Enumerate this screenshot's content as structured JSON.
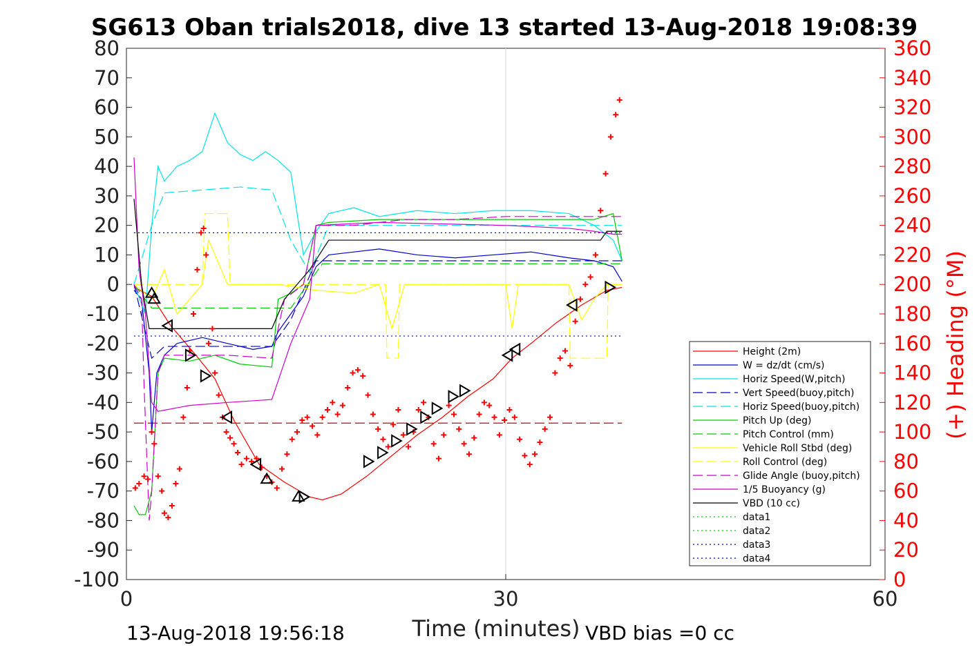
{
  "chart_data": {
    "type": "line",
    "title": "SG613 Oban trials2018, dive 13 started 13-Aug-2018 19:08:39",
    "xlabel": "Time (minutes)",
    "ylabel_right": "(+) Heading (°M)",
    "xlim": [
      0,
      60
    ],
    "ylim": [
      -100,
      80
    ],
    "ylim_right": [
      0,
      360
    ],
    "x_ticks": [
      0,
      30,
      60
    ],
    "y_ticks": [
      80,
      70,
      60,
      50,
      40,
      30,
      20,
      10,
      0,
      -10,
      -20,
      -30,
      -40,
      -50,
      -60,
      -70,
      -80,
      -90,
      -100
    ],
    "y_ticks_right": [
      360,
      340,
      320,
      300,
      280,
      260,
      240,
      220,
      200,
      180,
      160,
      140,
      120,
      100,
      80,
      60,
      40,
      20,
      0
    ],
    "grid": "x=30 only",
    "legend_position": "lower-right",
    "footer_left": "13-Aug-2018 19:56:18",
    "footer_right": "VBD bias =0 cc",
    "series": [
      {
        "name": "Height (2m)",
        "color": "#ff0000",
        "style": "solid",
        "x": [
          0.6,
          2.0,
          3.5,
          5.5,
          7.0,
          8.5,
          10.5,
          12.5,
          14.5,
          15.5,
          17.0,
          19.0,
          21.0,
          23.0,
          25.0,
          27.0,
          29.0,
          30.5,
          32.0,
          34.0,
          36.0,
          38.0,
          39.2
        ],
        "y": [
          -1,
          -4,
          -14,
          -24,
          -32,
          -46,
          -61,
          -67,
          -72,
          -73,
          -71,
          -65,
          -58,
          -51,
          -45,
          -38,
          -32,
          -25,
          -20,
          -13,
          -7,
          -2,
          -1
        ]
      },
      {
        "name": "W = dz/dt (cm/s)",
        "color": "#0000cc",
        "style": "solid",
        "x": [
          0.6,
          1.2,
          1.8,
          2.0,
          2.4,
          3.0,
          4.0,
          6.0,
          8.0,
          10.0,
          11.5,
          12.0,
          13.0,
          14.0,
          15.0,
          16.0,
          18.0,
          20.0,
          23.0,
          26.0,
          29.0,
          32.0,
          35.0,
          37.0,
          38.5,
          39.2
        ],
        "y": [
          -2,
          -5,
          -30,
          -50,
          -30,
          -24,
          -20,
          -18,
          -20,
          -22,
          -21,
          -16,
          -10,
          -4,
          6,
          10,
          11,
          12,
          10,
          9,
          10,
          11,
          9,
          8,
          6,
          1
        ]
      },
      {
        "name": "Horiz Speed(W,pitch)",
        "color": "#00e5e5",
        "style": "solid",
        "x": [
          0.6,
          1.5,
          2.0,
          2.5,
          3.0,
          4.0,
          5.0,
          6.0,
          7.0,
          8.0,
          9.0,
          10.0,
          11.0,
          12.0,
          13.0,
          14.0,
          15.0,
          16.0,
          18.0,
          20.0,
          23.0,
          26.0,
          29.0,
          32.0,
          35.0,
          37.0,
          38.5,
          39.2
        ],
        "y": [
          0,
          -10,
          20,
          40,
          35,
          40,
          42,
          45,
          58,
          48,
          44,
          42,
          45,
          42,
          38,
          10,
          18,
          24,
          26,
          23,
          25,
          24,
          25,
          25,
          24,
          20,
          15,
          8
        ]
      },
      {
        "name": "Vert Speed(buoy,pitch)",
        "color": "#0000cc",
        "style": "dashed",
        "x": [
          0.6,
          2.0,
          3.0,
          11.5,
          13.0,
          15.0,
          39.2
        ],
        "y": [
          0,
          -25,
          -21,
          -21,
          -12,
          8,
          8
        ]
      },
      {
        "name": "Horiz Speed(buoy,pitch)",
        "color": "#00e5e5",
        "style": "dashed",
        "x": [
          0.6,
          2.0,
          3.0,
          6.0,
          9.0,
          11.5,
          13.0,
          14.5,
          16.0,
          25.0,
          35.0,
          39.2
        ],
        "y": [
          0,
          20,
          31,
          32,
          33,
          32,
          15,
          4,
          20,
          20,
          20,
          20
        ]
      },
      {
        "name": "Pitch Up (deg)",
        "color": "#00cc00",
        "style": "solid",
        "x": [
          0.6,
          1.0,
          1.5,
          2.0,
          2.5,
          3.0,
          5.0,
          7.0,
          9.0,
          11.5,
          12.0,
          13.0,
          14.0,
          15.0,
          16.0,
          20.0,
          25.0,
          30.0,
          35.0,
          37.0,
          38.5,
          39.2
        ],
        "y": [
          -75,
          -78,
          -78,
          -70,
          -30,
          -25,
          -26,
          -24,
          -27,
          -28,
          -5,
          -3,
          0,
          20,
          21,
          22,
          22,
          22,
          22,
          22,
          24,
          8
        ]
      },
      {
        "name": "Pitch Control (mm)",
        "color": "#00cc00",
        "style": "dashed",
        "x": [
          0.6,
          2.0,
          11.5,
          13.0,
          15.5,
          39.2
        ],
        "y": [
          0,
          -8,
          -8,
          -8,
          7,
          7
        ]
      },
      {
        "name": "Vehicle Roll Stbd (deg)",
        "color": "#ffff00",
        "style": "solid",
        "x": [
          0.6,
          2.0,
          3.0,
          4.0,
          5.0,
          6.0,
          6.5,
          7.0,
          8.0,
          10.0,
          12.0,
          15.0,
          18.0,
          20.0,
          21.0,
          22.0,
          25.0,
          28.0,
          30.0,
          30.5,
          31.0,
          33.0,
          35.0,
          36.0,
          37.0,
          38.0,
          39.2
        ],
        "y": [
          0,
          -5,
          5,
          -10,
          -5,
          0,
          15,
          10,
          0,
          0,
          0,
          -2,
          -3,
          0,
          -15,
          0,
          0,
          0,
          0,
          -15,
          0,
          0,
          0,
          -12,
          -5,
          0,
          0
        ]
      },
      {
        "name": "Roll Control (deg)",
        "color": "#ffff00",
        "style": "dashed",
        "x": [
          0.6,
          6.0,
          6.2,
          8.0,
          8.2,
          20.5,
          20.6,
          21.5,
          21.6,
          35.0,
          35.1,
          38.0,
          38.1,
          39.2
        ],
        "y": [
          0,
          0,
          24,
          24,
          0,
          0,
          -25,
          -25,
          0,
          0,
          -25,
          -25,
          0,
          0
        ]
      },
      {
        "name": "Glide Angle (buoy,pitch)",
        "color": "#cc00cc",
        "style": "dashed",
        "x": [
          0.6,
          1.2,
          1.4,
          1.8,
          2.0,
          2.5,
          3.0,
          5.0,
          8.0,
          11.5,
          12.5,
          14.0,
          15.0,
          18.0,
          22.0,
          26.0,
          30.0,
          34.0,
          37.0,
          39.2
        ],
        "y": [
          0,
          -5,
          -35,
          -80,
          -70,
          -30,
          -24,
          -24,
          -24,
          -25,
          -5,
          0,
          20,
          20,
          22,
          22,
          23,
          23,
          23,
          23
        ]
      },
      {
        "name": "1/5 Buoyancy (g)",
        "color": "#cc00cc",
        "style": "solid",
        "x": [
          0.6,
          1.0,
          1.5,
          2.0,
          2.5,
          5.0,
          8.0,
          11.5,
          13.0,
          14.5,
          15.0,
          20.0,
          30.0,
          35.0,
          37.0,
          38.5,
          39.2
        ],
        "y": [
          43,
          5,
          -10,
          -40,
          -43,
          -41,
          -40,
          -39,
          -20,
          -5,
          20,
          21,
          20,
          19,
          18,
          17,
          17
        ]
      },
      {
        "name": "VBD (10 cc)",
        "color": "#000000",
        "style": "solid",
        "x": [
          0.6,
          1.2,
          1.8,
          11.5,
          12.5,
          13.5,
          14.5,
          16.0,
          37.5,
          38.0,
          39.2
        ],
        "y": [
          29,
          0,
          -15,
          -15,
          -5,
          0,
          5,
          15,
          15,
          18,
          18
        ]
      },
      {
        "name": "data1",
        "color": "#00cc00",
        "style": "dotted",
        "x": [],
        "y": []
      },
      {
        "name": "data2",
        "color": "#00cc00",
        "style": "dotted",
        "x": [],
        "y": []
      },
      {
        "name": "data3",
        "color": "#0000cc",
        "style": "dotted",
        "x": [
          0.6,
          39.2
        ],
        "y": [
          17.5,
          17.5
        ]
      },
      {
        "name": "data4",
        "color": "#0000cc",
        "style": "dotted",
        "x": [
          0.6,
          39.2
        ],
        "y": [
          -17.5,
          -17.5
        ]
      }
    ],
    "reference_line": {
      "color": "#cc0000",
      "style": "dashed",
      "x": [
        0.6,
        39.2
      ],
      "y": [
        -47,
        -47
      ]
    },
    "heading_series": {
      "color": "#ff0000",
      "marker": "plus",
      "axis": "right",
      "x": [
        0.7,
        1.0,
        1.4,
        1.7,
        2.0,
        2.2,
        2.5,
        2.8,
        3.0,
        3.3,
        3.6,
        3.9,
        4.2,
        4.5,
        4.8,
        5.0,
        5.3,
        5.6,
        5.9,
        6.1,
        6.3,
        6.5,
        6.8,
        7.0,
        7.3,
        7.6,
        7.9,
        8.2,
        8.5,
        8.8,
        9.1,
        9.5,
        9.9,
        10.3,
        10.7,
        11.1,
        11.5,
        11.9,
        12.3,
        12.7,
        13.1,
        13.5,
        13.9,
        14.3,
        14.7,
        15.1,
        15.5,
        15.9,
        16.3,
        16.7,
        17.1,
        17.5,
        17.9,
        18.3,
        18.7,
        19.1,
        19.5,
        19.9,
        20.3,
        20.7,
        21.1,
        21.5,
        21.9,
        22.3,
        22.7,
        23.1,
        23.5,
        23.9,
        24.3,
        24.7,
        25.1,
        25.5,
        25.9,
        26.3,
        26.7,
        27.1,
        27.5,
        27.9,
        28.3,
        28.7,
        29.1,
        29.5,
        29.9,
        30.3,
        30.7,
        31.1,
        31.5,
        31.9,
        32.3,
        32.7,
        33.1,
        33.5,
        33.9,
        34.3,
        34.7,
        35.1,
        35.5,
        35.9,
        36.3,
        36.7,
        37.1,
        37.5,
        37.9,
        38.3,
        38.7,
        39.0
      ],
      "y": [
        62,
        65,
        70,
        68,
        100,
        92,
        70,
        60,
        45,
        42,
        50,
        65,
        75,
        110,
        130,
        155,
        180,
        210,
        235,
        238,
        220,
        160,
        170,
        140,
        125,
        110,
        100,
        96,
        92,
        86,
        78,
        82,
        80,
        82,
        76,
        70,
        66,
        62,
        75,
        85,
        95,
        100,
        108,
        110,
        104,
        98,
        110,
        115,
        120,
        112,
        118,
        130,
        140,
        142,
        138,
        125,
        112,
        102,
        95,
        90,
        105,
        115,
        98,
        90,
        100,
        115,
        120,
        110,
        92,
        82,
        98,
        118,
        112,
        102,
        92,
        85,
        96,
        112,
        120,
        118,
        110,
        98,
        108,
        115,
        110,
        95,
        84,
        78,
        85,
        93,
        102,
        110,
        140,
        150,
        155,
        145,
        175,
        190,
        200,
        205,
        220,
        250,
        275,
        300,
        315,
        325
      ]
    },
    "triangle_markers": {
      "color": "#000000",
      "points": [
        {
          "x": 2.0,
          "y": -3,
          "dir": "up"
        },
        {
          "x": 2.2,
          "y": -5,
          "dir": "up"
        },
        {
          "x": 3.3,
          "y": -14,
          "dir": "left"
        },
        {
          "x": 5.0,
          "y": -24,
          "dir": "right"
        },
        {
          "x": 6.2,
          "y": -31,
          "dir": "right"
        },
        {
          "x": 8.0,
          "y": -45,
          "dir": "left"
        },
        {
          "x": 10.3,
          "y": -61,
          "dir": "left"
        },
        {
          "x": 11.1,
          "y": -66,
          "dir": "up"
        },
        {
          "x": 13.6,
          "y": -72,
          "dir": "up"
        },
        {
          "x": 14.0,
          "y": -72,
          "dir": "right"
        },
        {
          "x": 19.1,
          "y": -60,
          "dir": "right"
        },
        {
          "x": 20.2,
          "y": -57,
          "dir": "right"
        },
        {
          "x": 21.3,
          "y": -53,
          "dir": "right"
        },
        {
          "x": 22.5,
          "y": -49,
          "dir": "right"
        },
        {
          "x": 23.6,
          "y": -45,
          "dir": "right"
        },
        {
          "x": 24.5,
          "y": -42,
          "dir": "right"
        },
        {
          "x": 25.8,
          "y": -38,
          "dir": "right"
        },
        {
          "x": 26.7,
          "y": -36,
          "dir": "right"
        },
        {
          "x": 30.2,
          "y": -24,
          "dir": "left"
        },
        {
          "x": 30.8,
          "y": -22,
          "dir": "left"
        },
        {
          "x": 35.3,
          "y": -7,
          "dir": "left"
        },
        {
          "x": 38.2,
          "y": -1,
          "dir": "right"
        }
      ]
    }
  }
}
